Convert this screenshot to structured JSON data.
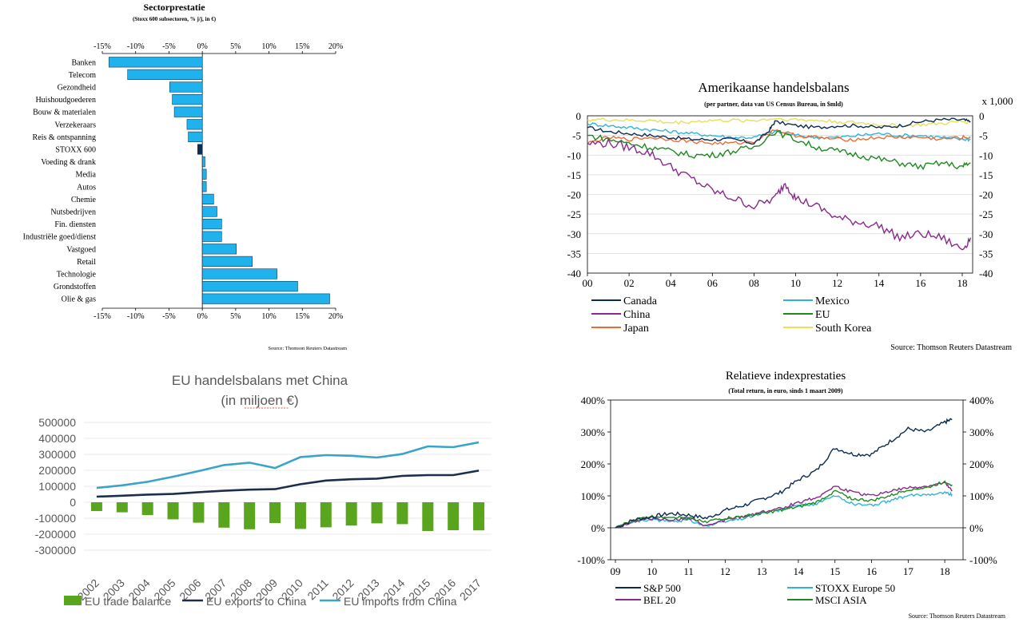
{
  "chart_data": [
    {
      "type": "bar",
      "orientation": "horizontal",
      "title": "Sectorprestatie",
      "subtitle": "(Stoxx 600 subsectoren, % j/j, in €)",
      "source": "Source: Thomson Reuters Datastream",
      "xlim": [
        -15,
        20
      ],
      "xticks": [
        "-15%",
        "-10%",
        "-5%",
        "0%",
        "5%",
        "10%",
        "15%",
        "20%"
      ],
      "grid": false,
      "categories": [
        "Banken",
        "Telecom",
        "Gezondheid",
        "Huishoudgoederen",
        "Bouw & materialen",
        "Verzekeraars",
        "Reis & ontspanning",
        "STOXX 600",
        "Voeding & drank",
        "Media",
        "Autos",
        "Chemie",
        "Nutsbedrijven",
        "Fin. diensten",
        "Industriële goed/dienst",
        "Vastgoed",
        "Retail",
        "Technologie",
        "Grondstoffen",
        "Olie & gas"
      ],
      "values": [
        -14,
        -11.2,
        -4.9,
        -4.5,
        -4.2,
        -2.3,
        -2.1,
        -0.7,
        0.4,
        0.6,
        0.6,
        1.7,
        2.2,
        2.9,
        2.9,
        5.1,
        7.5,
        11.2,
        14.3,
        19.1
      ],
      "colors": {
        "bar": "#1fb2ec",
        "highlight": "#0c2c52",
        "highlight_category": "STOXX 600"
      }
    },
    {
      "type": "line",
      "title": "Amerikaanse handelsbalans",
      "subtitle": "(per partner, data van US Census Bureau, in $mld)",
      "scale_label": "x 1,000",
      "source": "Source: Thomson Reuters Datastream",
      "ylim": [
        -40,
        0
      ],
      "yticks": [
        "0",
        "-5",
        "-10",
        "-15",
        "-20",
        "-25",
        "-30",
        "-35",
        "-40"
      ],
      "xticks": [
        "00",
        "02",
        "04",
        "06",
        "08",
        "10",
        "12",
        "14",
        "16",
        "18"
      ],
      "xlim": [
        2000,
        2018.5
      ],
      "grid": true,
      "legend_position": "bottom",
      "series": [
        {
          "name": "Canada",
          "color": "#0c2c52",
          "x": [
            2000,
            2001,
            2002,
            2003,
            2004,
            2005,
            2006,
            2007,
            2008,
            2008.7,
            2009,
            2010,
            2011,
            2012,
            2013,
            2014,
            2015,
            2016,
            2017,
            2018,
            2018.4
          ],
          "values": [
            -3,
            -4,
            -4.5,
            -5,
            -5.5,
            -6,
            -6,
            -6,
            -7,
            -4,
            -1.5,
            -2.5,
            -3,
            -2.5,
            -2.5,
            -3,
            -2.5,
            -1.5,
            -1,
            -1,
            -1.5
          ]
        },
        {
          "name": "Mexico",
          "color": "#30b4d8",
          "x": [
            2000,
            2001,
            2002,
            2003,
            2004,
            2005,
            2006,
            2007,
            2008,
            2009,
            2010,
            2011,
            2012,
            2013,
            2014,
            2015,
            2016,
            2017,
            2018,
            2018.4
          ],
          "values": [
            -2,
            -2.5,
            -3,
            -3.5,
            -4,
            -4.5,
            -5,
            -5.5,
            -5.5,
            -4,
            -5,
            -5.5,
            -5.5,
            -5,
            -4.5,
            -5,
            -5,
            -5.5,
            -6,
            -6
          ]
        },
        {
          "name": "China",
          "color": "#8a2a8c",
          "x": [
            2000,
            2001,
            2002,
            2003,
            2004,
            2005,
            2006,
            2007,
            2008,
            2009,
            2009.5,
            2010,
            2011,
            2012,
            2013,
            2014,
            2015,
            2016,
            2017,
            2018,
            2018.4
          ],
          "values": [
            -7,
            -7,
            -8,
            -9.5,
            -13,
            -16,
            -19,
            -21,
            -23,
            -21,
            -17,
            -21,
            -23,
            -26,
            -27,
            -28,
            -31,
            -30,
            -31,
            -34,
            -31
          ]
        },
        {
          "name": "EU",
          "color": "#1e8a1e",
          "x": [
            2000,
            2001,
            2002,
            2003,
            2004,
            2005,
            2006,
            2007,
            2008,
            2009,
            2010,
            2011,
            2012,
            2013,
            2014,
            2015,
            2016,
            2017,
            2018,
            2018.4
          ],
          "values": [
            -5,
            -6,
            -7,
            -8,
            -9,
            -10,
            -10,
            -9,
            -8,
            -4,
            -6,
            -8,
            -9,
            -10,
            -11,
            -12,
            -13,
            -12,
            -13,
            -12
          ]
        },
        {
          "name": "Japan",
          "color": "#e76d3b",
          "x": [
            2000,
            2001,
            2002,
            2003,
            2004,
            2005,
            2006,
            2007,
            2008,
            2009,
            2010,
            2011,
            2012,
            2013,
            2014,
            2015,
            2016,
            2017,
            2018,
            2018.4
          ],
          "values": [
            -7,
            -5.5,
            -6,
            -5.5,
            -6,
            -6.5,
            -7,
            -7,
            -6.5,
            -3.5,
            -5,
            -5.5,
            -6,
            -6,
            -5.5,
            -5.5,
            -5.5,
            -6,
            -5.5,
            -5.5
          ]
        },
        {
          "name": "South Korea",
          "color": "#e6e05a",
          "x": [
            2000,
            2001,
            2002,
            2003,
            2004,
            2005,
            2006,
            2007,
            2008,
            2009,
            2010,
            2011,
            2012,
            2013,
            2014,
            2015,
            2016,
            2017,
            2018,
            2018.4
          ],
          "values": [
            -1,
            -1,
            -1.2,
            -1.2,
            -1.8,
            -1.5,
            -1.2,
            -1.2,
            -1.2,
            -0.7,
            -1,
            -1.2,
            -1.5,
            -1.8,
            -2.3,
            -2.5,
            -2.3,
            -2,
            -1.5,
            -1.5
          ]
        }
      ]
    },
    {
      "type": "bar+line",
      "title": "EU handelsbalans met China",
      "subtitle": "(in miljoen €)",
      "ylim": [
        -300000,
        500000
      ],
      "yticks": [
        "500000",
        "400000",
        "300000",
        "200000",
        "100000",
        "0",
        "-100000",
        "-200000",
        "-300000"
      ],
      "categories": [
        "2002",
        "2003",
        "2004",
        "2005",
        "2006",
        "2007",
        "2008",
        "2009",
        "2010",
        "2011",
        "2012",
        "2013",
        "2014",
        "2015",
        "2016",
        "2017"
      ],
      "grid": true,
      "legend_position": "bottom",
      "series": [
        {
          "name": "EU trade balance",
          "type": "bar",
          "color": "#5aa51e",
          "values": [
            -55000,
            -63000,
            -80000,
            -107000,
            -128000,
            -159000,
            -169000,
            -130000,
            -167000,
            -157000,
            -146000,
            -132000,
            -137000,
            -180000,
            -175000,
            -176000
          ]
        },
        {
          "name": "EU exports to China",
          "type": "line",
          "color": "#1c2e4c",
          "values": [
            35000,
            41000,
            48000,
            52000,
            63000,
            72000,
            79000,
            82000,
            113000,
            136000,
            144000,
            148000,
            165000,
            170000,
            170000,
            198000
          ]
        },
        {
          "name": "EU imports from China",
          "type": "line",
          "color": "#3aa3c7",
          "values": [
            90000,
            106000,
            128000,
            160000,
            195000,
            233000,
            248000,
            214000,
            283000,
            295000,
            291000,
            280000,
            302000,
            350000,
            345000,
            375000
          ]
        }
      ]
    },
    {
      "type": "line",
      "title": "Relatieve indexprestaties",
      "subtitle": "(Total return, in euro, sinds 1 maart 2009)",
      "source": "Source: Thomson Reuters Datastream",
      "ylim": [
        -100,
        400
      ],
      "yticks": [
        "400%",
        "300%",
        "200%",
        "100%",
        "0%",
        "-100%"
      ],
      "xticks": [
        "09",
        "10",
        "11",
        "12",
        "13",
        "14",
        "15",
        "16",
        "17",
        "18"
      ],
      "xlim": [
        2009,
        2018.5
      ],
      "grid": false,
      "legend_position": "bottom",
      "series": [
        {
          "name": "S&P 500",
          "color": "#0c2c52",
          "x": [
            2009,
            2009.5,
            2010,
            2010.5,
            2011,
            2011.5,
            2012,
            2012.5,
            2013,
            2013.5,
            2014,
            2014.5,
            2015,
            2015.5,
            2016,
            2016.5,
            2017,
            2017.5,
            2018,
            2018.2
          ],
          "values": [
            0,
            25,
            35,
            45,
            40,
            30,
            55,
            70,
            90,
            110,
            150,
            180,
            250,
            230,
            230,
            270,
            310,
            300,
            330,
            340
          ]
        },
        {
          "name": "STOXX Europe 50",
          "color": "#30b4d8",
          "x": [
            2009,
            2009.5,
            2010,
            2010.5,
            2011,
            2011.5,
            2012,
            2012.5,
            2013,
            2013.5,
            2014,
            2014.5,
            2015,
            2015.5,
            2016,
            2016.5,
            2017,
            2017.5,
            2018,
            2018.2
          ],
          "values": [
            0,
            20,
            25,
            20,
            25,
            5,
            20,
            30,
            45,
            55,
            70,
            75,
            100,
            75,
            70,
            85,
            100,
            105,
            110,
            105
          ]
        },
        {
          "name": "BEL 20",
          "color": "#8a2a8c",
          "x": [
            2009,
            2009.5,
            2010,
            2010.5,
            2011,
            2011.5,
            2012,
            2012.5,
            2013,
            2013.5,
            2014,
            2014.5,
            2015,
            2015.5,
            2016,
            2016.5,
            2017,
            2017.5,
            2018,
            2018.2
          ],
          "values": [
            0,
            20,
            30,
            25,
            30,
            5,
            25,
            35,
            50,
            60,
            80,
            95,
            130,
            110,
            100,
            115,
            125,
            130,
            140,
            115
          ]
        },
        {
          "name": "MSCI ASIA",
          "color": "#1e8a1e",
          "x": [
            2009,
            2009.5,
            2010,
            2010.5,
            2011,
            2011.5,
            2012,
            2012.5,
            2013,
            2013.5,
            2014,
            2014.5,
            2015,
            2015.5,
            2016,
            2016.5,
            2017,
            2017.5,
            2018,
            2018.2
          ],
          "values": [
            0,
            25,
            35,
            35,
            30,
            20,
            30,
            35,
            45,
            55,
            65,
            80,
            115,
            90,
            85,
            100,
            120,
            125,
            145,
            135
          ]
        }
      ]
    }
  ]
}
